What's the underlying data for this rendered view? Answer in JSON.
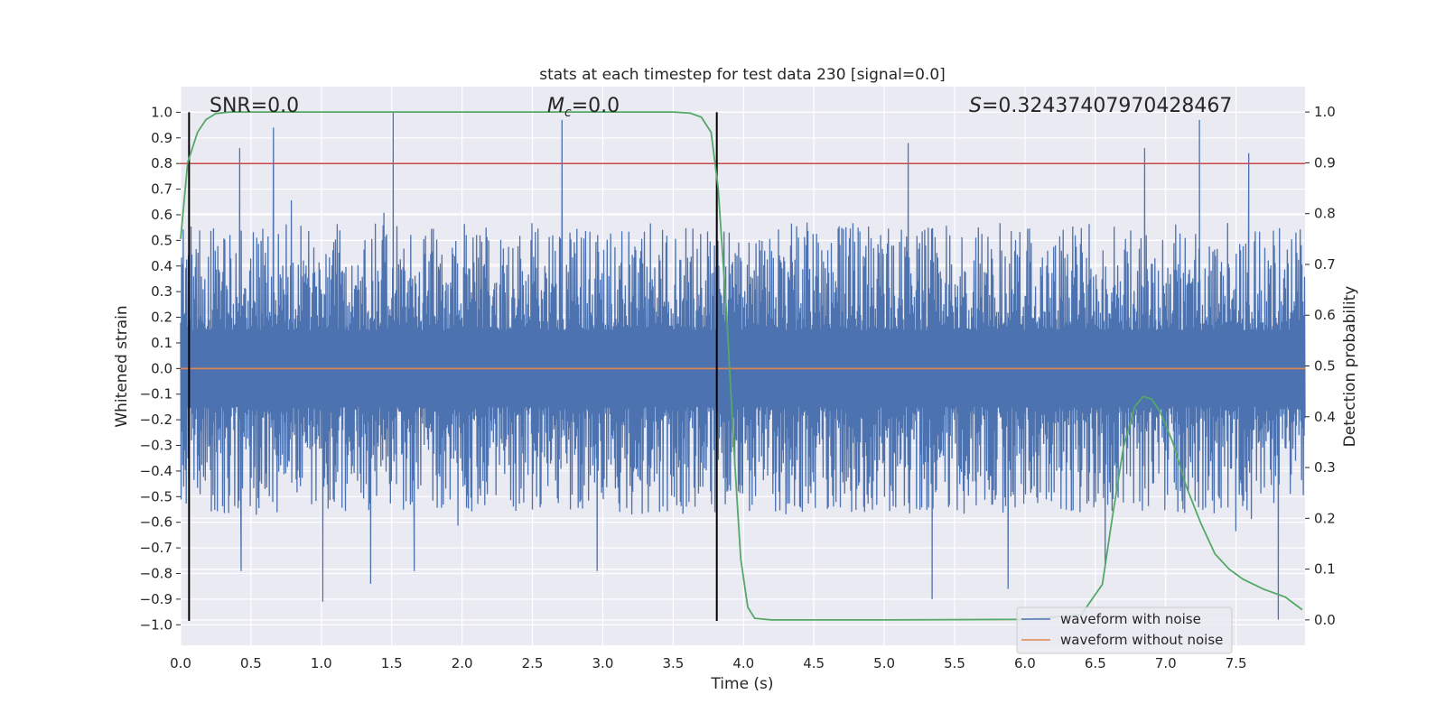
{
  "chart_data": {
    "type": "line",
    "title": "stats at each timestep for test data 230 [signal=0.0]",
    "xlabel": "Time (s)",
    "ylabel_left": "Whitened strain",
    "ylabel_right": "Detection probability",
    "xlim": [
      0.0,
      7.99
    ],
    "ylim_left": [
      -1.08,
      1.1
    ],
    "ylim_right": [
      -0.05,
      1.05
    ],
    "x_ticks": [
      "0.0",
      "0.5",
      "1.0",
      "1.5",
      "2.0",
      "2.5",
      "3.0",
      "3.5",
      "4.0",
      "4.5",
      "5.0",
      "5.5",
      "6.0",
      "6.5",
      "7.0",
      "7.5"
    ],
    "y_left_ticks": [
      "1.0",
      "0.9",
      "0.8",
      "0.7",
      "0.6",
      "0.5",
      "0.4",
      "0.3",
      "0.2",
      "0.1",
      "0.0",
      "−0.1",
      "−0.2",
      "−0.3",
      "−0.4",
      "−0.5",
      "−0.6",
      "−0.7",
      "−0.8",
      "−0.9",
      "−1.0"
    ],
    "y_right_ticks": [
      "1.0",
      "0.9",
      "0.8",
      "0.7",
      "0.6",
      "0.5",
      "0.4",
      "0.3",
      "0.2",
      "0.1",
      "0.0"
    ],
    "grid": true,
    "legend_position": "bottom-right",
    "annotations": {
      "snr": "SNR=0.0",
      "mc": "=0.0",
      "mc_symbol": "M",
      "mc_subscript": "c",
      "s_symbol": "S",
      "s": "=0.32437407970428467"
    },
    "threshold_line": {
      "axis": "left",
      "y": 0.8,
      "color": "#c44e52"
    },
    "vertical_markers": {
      "axis": "x",
      "x": [
        0.06,
        3.81
      ],
      "color": "#000000"
    },
    "series": [
      {
        "name": "waveform with noise",
        "axis": "left",
        "color": "#4c72b0",
        "style": "dense noise trace; positive peaks mostly 0.3–0.8, negative troughs mostly -0.3 to -0.8",
        "notable_peaks": [
          {
            "x": 0.42,
            "y": 0.86
          },
          {
            "x": 0.66,
            "y": 0.94
          },
          {
            "x": 1.51,
            "y": 1.0
          },
          {
            "x": 2.71,
            "y": 0.97
          },
          {
            "x": 5.17,
            "y": 0.88
          },
          {
            "x": 6.85,
            "y": 0.86
          },
          {
            "x": 7.24,
            "y": 0.97
          },
          {
            "x": 7.59,
            "y": 0.84
          }
        ],
        "notable_troughs": [
          {
            "x": 0.43,
            "y": -0.79
          },
          {
            "x": 1.01,
            "y": -0.91
          },
          {
            "x": 1.35,
            "y": -0.84
          },
          {
            "x": 1.66,
            "y": -0.79
          },
          {
            "x": 2.96,
            "y": -0.79
          },
          {
            "x": 5.34,
            "y": -0.9
          },
          {
            "x": 5.88,
            "y": -0.86
          },
          {
            "x": 6.57,
            "y": -0.78
          },
          {
            "x": 7.8,
            "y": -0.98
          }
        ]
      },
      {
        "name": "waveform without noise",
        "axis": "left",
        "color": "#dd8452",
        "x": [
          0.0,
          7.99
        ],
        "y": [
          0.0,
          0.0
        ]
      },
      {
        "axis": "right",
        "color": "#55a868",
        "x": [
          0.0,
          0.05,
          0.12,
          0.18,
          0.25,
          0.35,
          0.5,
          1.0,
          2.0,
          3.0,
          3.5,
          3.62,
          3.7,
          3.77,
          3.82,
          3.88,
          3.94,
          3.98,
          4.03,
          4.08,
          4.2,
          5.0,
          6.0,
          6.4,
          6.55,
          6.62,
          6.7,
          6.78,
          6.84,
          6.9,
          6.96,
          7.05,
          7.15,
          7.25,
          7.35,
          7.45,
          7.55,
          7.7,
          7.85,
          7.97
        ],
        "y": [
          0.75,
          0.9,
          0.96,
          0.985,
          0.997,
          1.0,
          1.0,
          1.0,
          1.0,
          1.0,
          1.0,
          0.998,
          0.99,
          0.96,
          0.85,
          0.6,
          0.3,
          0.12,
          0.025,
          0.003,
          0.0,
          0.0,
          0.001,
          0.01,
          0.07,
          0.2,
          0.34,
          0.42,
          0.44,
          0.435,
          0.41,
          0.35,
          0.26,
          0.19,
          0.13,
          0.1,
          0.08,
          0.06,
          0.045,
          0.02
        ]
      }
    ]
  }
}
